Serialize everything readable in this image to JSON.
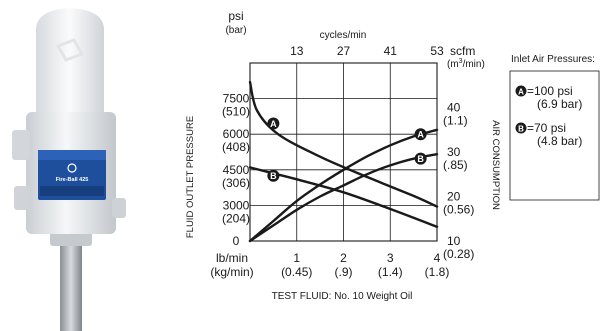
{
  "product": {
    "badge_text": "Fire-Ball 425"
  },
  "chart_data": {
    "type": "line",
    "x": {
      "label": "",
      "unit_primary": "lb/min",
      "unit_secondary": "(kg/min)",
      "range": [
        0,
        4
      ],
      "ticks": [
        {
          "value": 1,
          "primary": "1",
          "secondary": "(0.45)"
        },
        {
          "value": 2,
          "primary": "2",
          "secondary": "(.9)"
        },
        {
          "value": 3,
          "primary": "3",
          "secondary": "(1.4)"
        },
        {
          "value": 4,
          "primary": "4",
          "secondary": "(1.8)"
        }
      ]
    },
    "x_top": {
      "label": "cycles/min",
      "ticks": [
        {
          "value": 1,
          "label": "13"
        },
        {
          "value": 2,
          "label": "27"
        },
        {
          "value": 3,
          "label": "41"
        },
        {
          "value": 4,
          "label": "53"
        }
      ]
    },
    "y_left": {
      "label": "FLUID OUTLET PRESSURE",
      "unit_primary": "psi",
      "unit_secondary": "(bar)",
      "range": [
        0,
        7500
      ],
      "ticks": [
        {
          "value": 0,
          "primary": "0",
          "secondary": ""
        },
        {
          "value": 1500,
          "primary": "3000",
          "secondary": "(204)"
        },
        {
          "value": 3000,
          "primary": "4500",
          "secondary": "(306)"
        },
        {
          "value": 4500,
          "primary": "6000",
          "secondary": "(408)"
        },
        {
          "value": 6000,
          "primary": "7500",
          "secondary": "(510)"
        }
      ]
    },
    "y_right": {
      "label": "AIR CONSUMPTION",
      "unit_primary": "scfm",
      "unit_secondary_pre": "(m",
      "unit_secondary_sup": "3",
      "unit_secondary_post": "/min)",
      "range": [
        10,
        50
      ],
      "ticks": [
        {
          "value": 10,
          "primary": "10",
          "secondary": "(0.28)"
        },
        {
          "value": 20,
          "primary": "20",
          "secondary": "(0.56)"
        },
        {
          "value": 30,
          "primary": "30",
          "secondary": "(.85)"
        },
        {
          "value": 40,
          "primary": "40",
          "secondary": "(1.1)"
        }
      ]
    },
    "grid": true,
    "series": [
      {
        "name": "A",
        "axis": "left",
        "kind": "fluid_pressure",
        "points": [
          [
            0,
            6700
          ],
          [
            0.15,
            5500
          ],
          [
            0.6,
            4500
          ],
          [
            1.5,
            3550
          ],
          [
            2.5,
            2700
          ],
          [
            3.5,
            1900
          ],
          [
            4,
            1450
          ]
        ]
      },
      {
        "name": "B",
        "axis": "left",
        "kind": "fluid_pressure",
        "points": [
          [
            0,
            3100
          ],
          [
            0.4,
            2900
          ],
          [
            1,
            2600
          ],
          [
            2,
            2050
          ],
          [
            3,
            1350
          ],
          [
            4,
            600
          ]
        ]
      },
      {
        "name": "A",
        "axis": "right",
        "kind": "air_consumption",
        "points": [
          [
            0,
            10
          ],
          [
            0.5,
            14.5
          ],
          [
            1,
            19
          ],
          [
            1.5,
            22.7
          ],
          [
            2,
            26
          ],
          [
            2.5,
            29
          ],
          [
            3,
            31.5
          ],
          [
            3.5,
            33.5
          ],
          [
            4,
            35
          ]
        ]
      },
      {
        "name": "B",
        "axis": "right",
        "kind": "air_consumption",
        "points": [
          [
            0,
            10
          ],
          [
            0.5,
            13.5
          ],
          [
            1,
            17
          ],
          [
            1.5,
            20
          ],
          [
            2,
            22.5
          ],
          [
            2.5,
            25
          ],
          [
            3,
            27
          ],
          [
            3.5,
            28.5
          ],
          [
            4,
            29.5
          ]
        ]
      }
    ],
    "markers": [
      {
        "name": "A",
        "axis": "left",
        "x": 0.5,
        "y": 4950
      },
      {
        "name": "B",
        "axis": "left",
        "x": 0.5,
        "y": 2750
      },
      {
        "name": "A",
        "axis": "right",
        "x": 3.65,
        "y": 34
      },
      {
        "name": "B",
        "axis": "right",
        "x": 3.65,
        "y": 28.5
      }
    ],
    "caption": "TEST FLUID: No. 10 Weight Oil",
    "legend": {
      "title": "Inlet Air Pressures:",
      "entries": [
        {
          "marker": "A",
          "primary": "=100 psi",
          "secondary": "(6.9 bar)"
        },
        {
          "marker": "B",
          "primary": "=70 psi",
          "secondary": "(4.8 bar)"
        }
      ]
    },
    "colors": {
      "line": "#1a1a1a",
      "grid": "#1a1a1a",
      "pump_body": "#e8ebee",
      "label_blue": "#1d4f9c"
    }
  }
}
